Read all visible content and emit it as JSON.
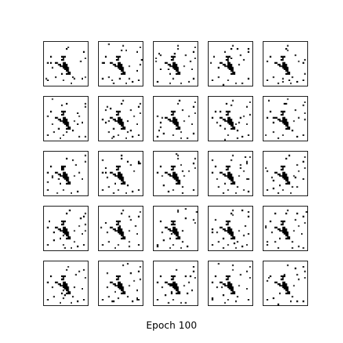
{
  "figure": {
    "caption": "Epoch 100",
    "grid": {
      "rows": 5,
      "cols": 5
    },
    "image_resolution": 28,
    "colors": {
      "background": "#ffffff",
      "ink": "#000000",
      "frame": "#000000"
    }
  }
}
